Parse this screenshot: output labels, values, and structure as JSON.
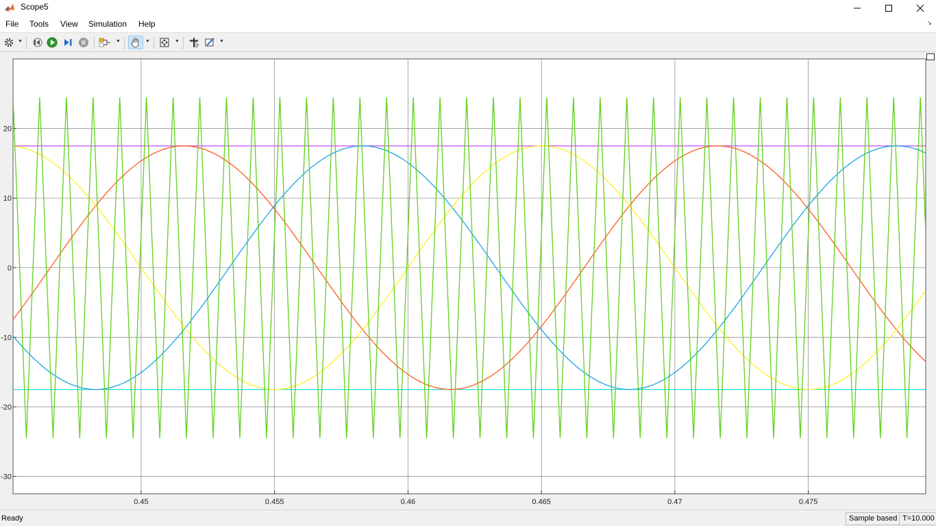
{
  "window": {
    "title": "Scope5",
    "icon": "matlab-icon",
    "controls": [
      "minimize-icon",
      "maximize-icon",
      "close-icon"
    ]
  },
  "menu": {
    "items": [
      "File",
      "Tools",
      "View",
      "Simulation",
      "Help"
    ]
  },
  "toolbar": {
    "buttons": [
      "gear-icon",
      "step-back-icon",
      "run-icon",
      "step-forward-icon",
      "stop-icon",
      "layout-icon",
      "pan-icon",
      "zoom-fit-icon",
      "cursor-icon",
      "style-icon"
    ]
  },
  "status": {
    "text": "Ready",
    "sample_mode": "Sample based",
    "time": "T=10.000"
  },
  "colors": {
    "sine_a": "#ff5a1f",
    "sine_b": "#1aa3e6",
    "sine_c": "#ffee22",
    "carrier": "#5ed01a",
    "upper_limit": "#cc44ff",
    "lower_limit": "#22dddd",
    "background": "#ffffff",
    "grid": "#808080"
  },
  "chart_data": {
    "type": "line",
    "xlim": [
      0.4452,
      0.4794
    ],
    "ylim": [
      -32.5,
      30
    ],
    "x_ticks": [
      0.45,
      0.455,
      0.46,
      0.465,
      0.47,
      0.475
    ],
    "x_tick_labels": [
      "0.45",
      "0.455",
      "0.46",
      "0.465",
      "0.47",
      "0.475"
    ],
    "y_ticks": [
      -30,
      -20,
      -10,
      0,
      10,
      20
    ],
    "y_tick_labels": [
      "-30",
      "-20",
      "-10",
      "0",
      "10",
      "20"
    ],
    "grid": true,
    "legend": "none",
    "series": [
      {
        "kind": "sine",
        "amplitude": 17.5,
        "frequency_hz": 50,
        "peak_time": 0.4516,
        "color_key": "sine_a"
      },
      {
        "kind": "sine",
        "amplitude": 17.5,
        "frequency_hz": 50,
        "peak_time": 0.4583,
        "color_key": "sine_b"
      },
      {
        "kind": "sine",
        "amplitude": 17.5,
        "frequency_hz": 50,
        "peak_time": 0.445,
        "color_key": "sine_c"
      },
      {
        "kind": "triangle",
        "amplitude": 24.5,
        "frequency_hz": 1000,
        "peak_time": 0.4452,
        "color_key": "carrier"
      },
      {
        "kind": "constant",
        "value": 17.5,
        "color_key": "upper_limit"
      },
      {
        "kind": "constant",
        "value": -17.5,
        "color_key": "lower_limit"
      }
    ]
  }
}
